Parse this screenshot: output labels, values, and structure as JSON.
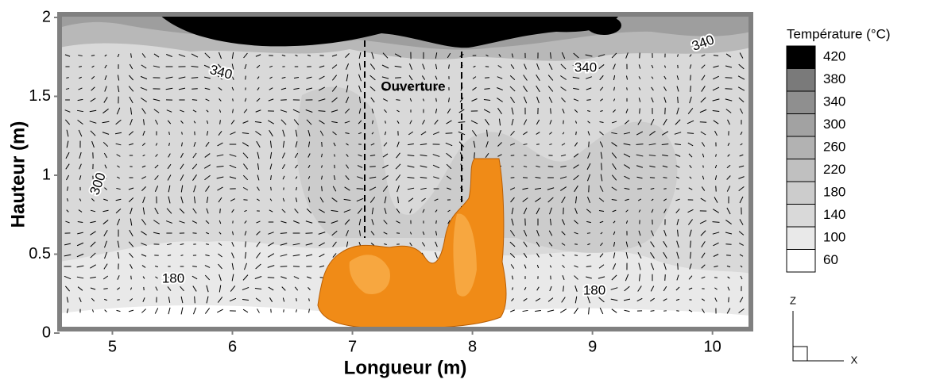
{
  "chart_data": {
    "type": "contour",
    "xlabel": "Longueur (m)",
    "ylabel": "Hauteur (m)",
    "xlim": [
      4.56,
      10.32
    ],
    "ylim": [
      0,
      2
    ],
    "xticks": [
      5,
      6,
      7,
      8,
      9,
      10
    ],
    "yticks": [
      0,
      0.5,
      1,
      1.5,
      2
    ],
    "legend": {
      "title": "Température (°C)",
      "levels": [
        420,
        380,
        340,
        300,
        260,
        220,
        180,
        140,
        100,
        60
      ],
      "colors": [
        "#000000",
        "#7a7a7a",
        "#8f8f8f",
        "#a2a2a2",
        "#b2b2b2",
        "#c0c0c0",
        "#cccccc",
        "#d9d9d9",
        "#e9e9e9",
        "#ffffff"
      ]
    },
    "annotations": [
      "Ouverture",
      "340",
      "340",
      "340",
      "300",
      "180",
      "180"
    ],
    "axes_triad": [
      "Z",
      "X"
    ]
  }
}
